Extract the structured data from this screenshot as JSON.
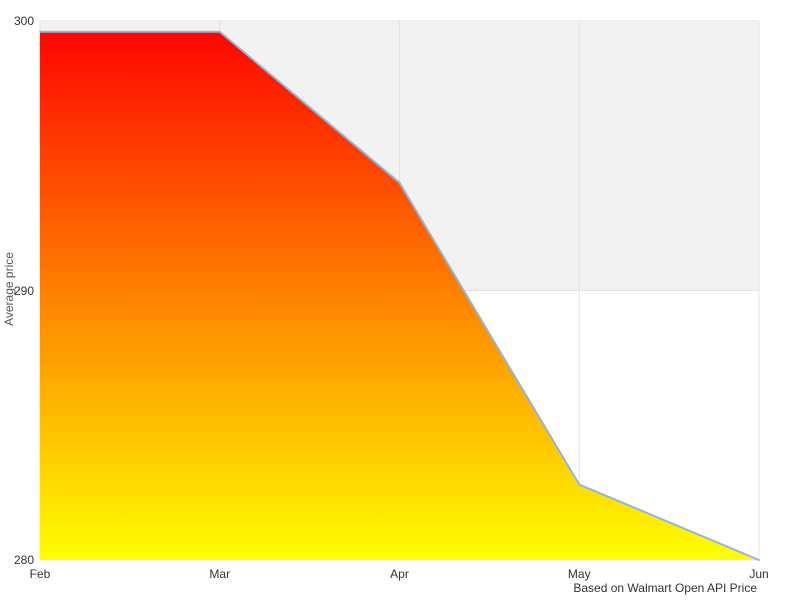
{
  "chart_data": {
    "type": "area",
    "title": "",
    "categories": [
      "Feb",
      "Mar",
      "Apr",
      "May",
      "Jun"
    ],
    "values": [
      299.6,
      299.6,
      294,
      282.8,
      280
    ],
    "xlabel": "",
    "ylabel": "Average price",
    "ylim": [
      280,
      300
    ],
    "yticks": [
      280,
      290,
      300
    ],
    "band_range": [
      290,
      300
    ],
    "grid": true,
    "legend": "none",
    "caption": "Based on Walmart Open API Price",
    "colors": {
      "gradient_top": "#ff0000",
      "gradient_bottom": "#ffff00",
      "line": "#8fb6dc",
      "band": "#f2f2f2",
      "grid_line": "#e3e3e3",
      "tick_label": "#333333",
      "axis_title": "#555555",
      "background": "#ffffff"
    }
  }
}
